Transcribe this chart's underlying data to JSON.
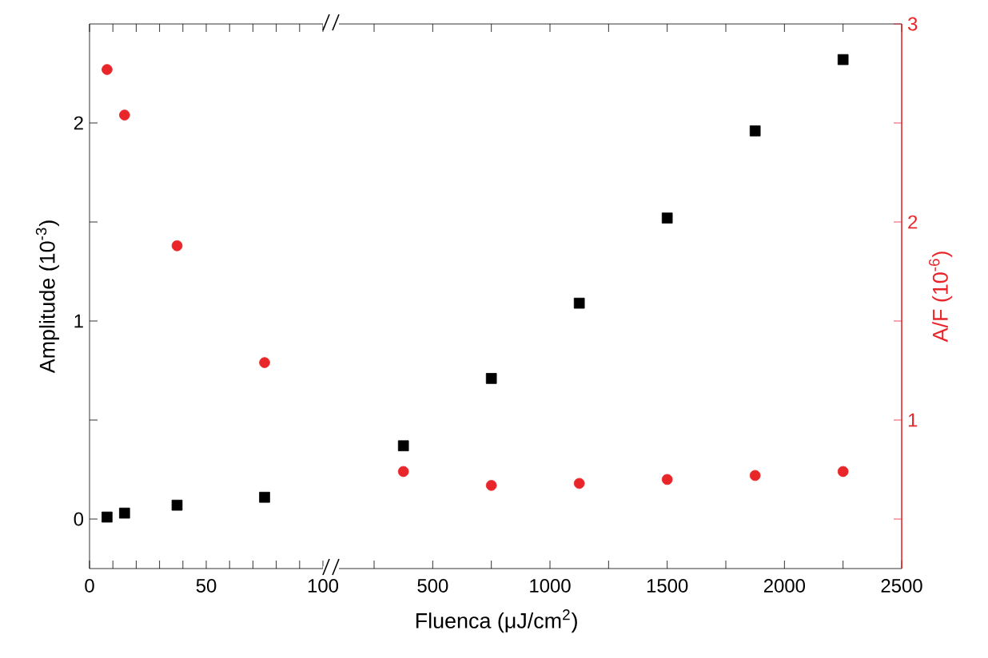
{
  "chart_data": [
    {
      "type": "scatter",
      "ylabel": "Amplitude (10$^{-3}$)",
      "xlim": [
        0,
        100
      ],
      "ylim": [
        -0.25,
        2.5
      ],
      "y2lim": [
        0.25,
        3
      ],
      "xticks": [
        0,
        {
          "value": 10,
          "label": null
        },
        {
          "value": 20,
          "label": null
        },
        {
          "value": 30,
          "label": null
        },
        {
          "value": 40,
          "label": null
        },
        50,
        {
          "value": 60,
          "label": null
        },
        {
          "value": 70,
          "label": null
        },
        {
          "value": 80,
          "label": null
        },
        {
          "value": 90,
          "label": null
        },
        100
      ],
      "yticks": [
        0,
        {
          "value": 0.5,
          "label": null
        },
        1,
        {
          "value": 1.5,
          "label": null
        },
        2
      ],
      "tick_labels": [
        "x",
        "y"
      ],
      "series": [
        {
          "color": "#000000",
          "marker": "square",
          "x": [
            7.5,
            15,
            37.5,
            75
          ],
          "values": [
            0.01,
            0.03,
            0.07,
            0.11
          ]
        },
        {
          "color": "#e8262a",
          "marker": "circle",
          "axis": "y2",
          "x": [
            7.5,
            15,
            37.5,
            75
          ],
          "values": [
            2.77,
            2.54,
            1.88,
            1.29
          ]
        }
      ]
    },
    {
      "type": "scatter",
      "xlabel": "Fluenca (μJ/cm$^{2}$)",
      "y2label": "A/F (10$^{-6}$)",
      "xlim": [
        100,
        2500
      ],
      "ylim": [
        -0.25,
        2.5
      ],
      "y2lim": [
        0.25,
        3
      ],
      "xticks": [
        {
          "value": 250,
          "label": null
        },
        500,
        {
          "value": 750,
          "label": null
        },
        1000,
        {
          "value": 1250,
          "label": null
        },
        1500,
        {
          "value": 1750,
          "label": null
        },
        2000,
        {
          "value": 2250,
          "label": null
        },
        2500
      ],
      "y2ticks": [
        {
          "value": 0.5,
          "label": null
        },
        1,
        {
          "value": 1.5,
          "label": null
        },
        2,
        {
          "value": 2.5,
          "label": null
        },
        3
      ],
      "tick_labels": [
        "x",
        "y2"
      ],
      "series": [
        {
          "color": "#000000",
          "marker": "square",
          "x": [
            375,
            750,
            1125,
            1500,
            1875,
            2250
          ],
          "values": [
            0.37,
            0.71,
            1.09,
            1.52,
            1.96,
            2.32
          ]
        },
        {
          "color": "#e8262a",
          "marker": "circle",
          "axis": "y2",
          "x": [
            375,
            750,
            1125,
            1500,
            1875,
            2250
          ],
          "values": [
            0.74,
            0.67,
            0.68,
            0.7,
            0.72,
            0.74
          ]
        }
      ]
    }
  ]
}
